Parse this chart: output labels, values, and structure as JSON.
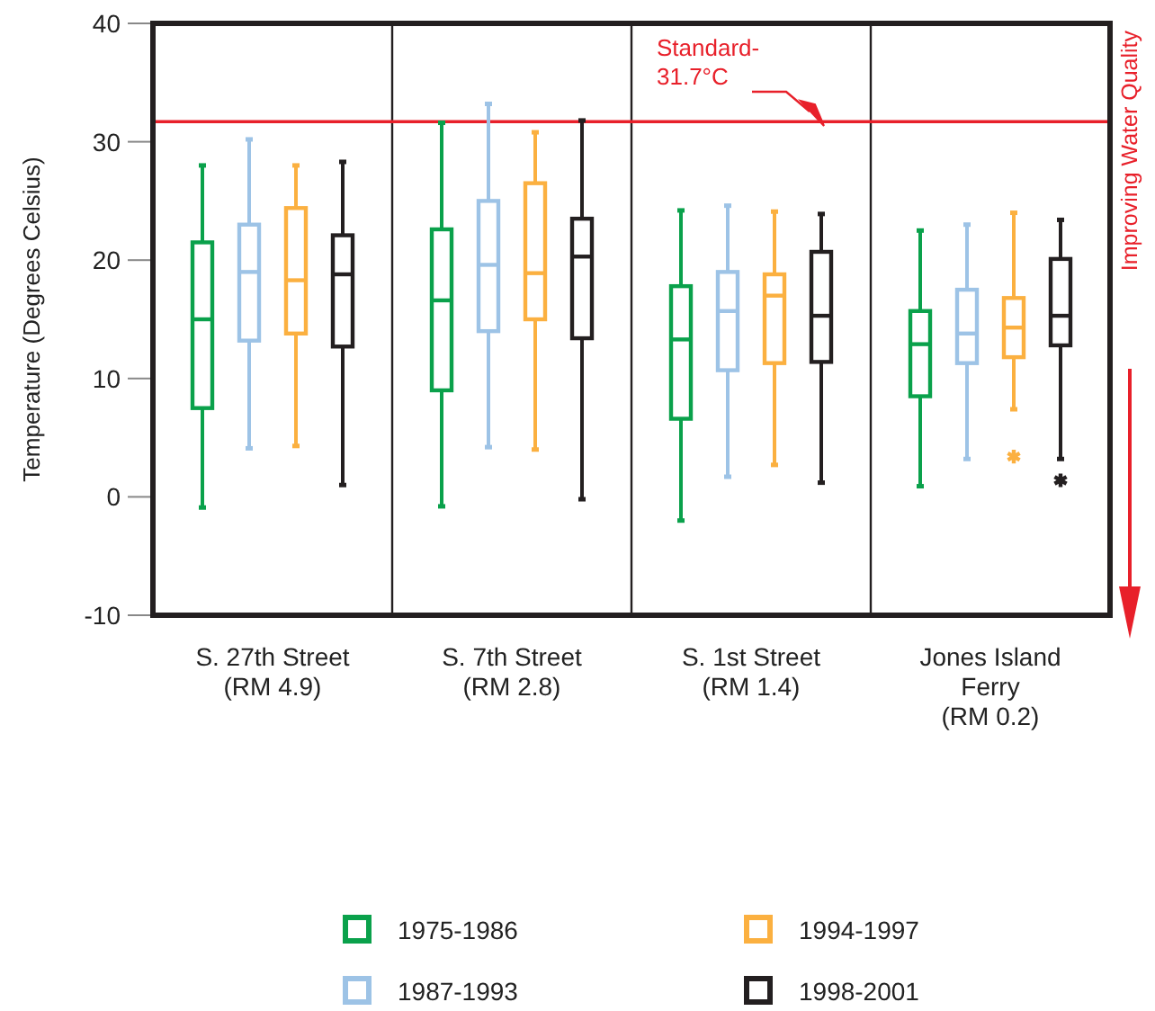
{
  "chart_data": {
    "type": "box",
    "ylabel": "Temperature (Degrees Celsius)",
    "categories": [
      "S. 27th Street\n(RM 4.9)",
      "S. 7th Street\n(RM 2.8)",
      "S. 1st Street\n(RM 1.4)",
      "Jones Island\nFerry\n(RM 0.2)"
    ],
    "ylim": [
      -10,
      40
    ],
    "yticks": [
      -10,
      0,
      10,
      20,
      30,
      40
    ],
    "grid": false,
    "legend": "bottom",
    "ref_lines": [
      {
        "axis": "y",
        "value": 31.7,
        "label": "Standard-\n31.7°C",
        "color": "#e8202a"
      }
    ],
    "annotations": [
      "Improving Water Quality"
    ],
    "series": [
      {
        "name": "1975-1986",
        "color": "#0aa14b",
        "boxes": [
          {
            "low": -0.9,
            "q1": 7.5,
            "median": 15.0,
            "q3": 21.5,
            "high": 28.0
          },
          {
            "low": -0.8,
            "q1": 9.0,
            "median": 16.6,
            "q3": 22.6,
            "high": 31.6
          },
          {
            "low": -2.0,
            "q1": 6.6,
            "median": 13.3,
            "q3": 17.8,
            "high": 24.2
          },
          {
            "low": 0.9,
            "q1": 8.5,
            "median": 12.9,
            "q3": 15.7,
            "high": 22.5
          }
        ]
      },
      {
        "name": "1987-1993",
        "color": "#9dc3e6",
        "boxes": [
          {
            "low": 4.1,
            "q1": 13.2,
            "median": 19.0,
            "q3": 23.0,
            "high": 30.2
          },
          {
            "low": 4.2,
            "q1": 14.0,
            "median": 19.6,
            "q3": 25.0,
            "high": 33.2
          },
          {
            "low": 1.7,
            "q1": 10.7,
            "median": 15.7,
            "q3": 19.0,
            "high": 24.6
          },
          {
            "low": 3.2,
            "q1": 11.3,
            "median": 13.8,
            "q3": 17.5,
            "high": 23.0
          }
        ]
      },
      {
        "name": "1994-1997",
        "color": "#fbb040",
        "boxes": [
          {
            "low": 4.3,
            "q1": 13.8,
            "median": 18.3,
            "q3": 24.4,
            "high": 28.0
          },
          {
            "low": 4.0,
            "q1": 15.0,
            "median": 18.9,
            "q3": 26.5,
            "high": 30.8
          },
          {
            "low": 2.7,
            "q1": 11.3,
            "median": 17.0,
            "q3": 18.8,
            "high": 24.1
          },
          {
            "low": 7.4,
            "q1": 11.8,
            "median": 14.3,
            "q3": 16.8,
            "high": 24.0,
            "outliers": [
              3.4
            ]
          }
        ]
      },
      {
        "name": "1998-2001",
        "color": "#231f20",
        "boxes": [
          {
            "low": 1.0,
            "q1": 12.7,
            "median": 18.8,
            "q3": 22.1,
            "high": 28.3
          },
          {
            "low": -0.2,
            "q1": 13.4,
            "median": 20.3,
            "q3": 23.5,
            "high": 31.8
          },
          {
            "low": 1.2,
            "q1": 11.4,
            "median": 15.3,
            "q3": 20.7,
            "high": 23.9
          },
          {
            "low": 3.2,
            "q1": 12.8,
            "median": 15.3,
            "q3": 20.1,
            "high": 23.4,
            "outliers": [
              1.4
            ]
          }
        ]
      }
    ]
  }
}
